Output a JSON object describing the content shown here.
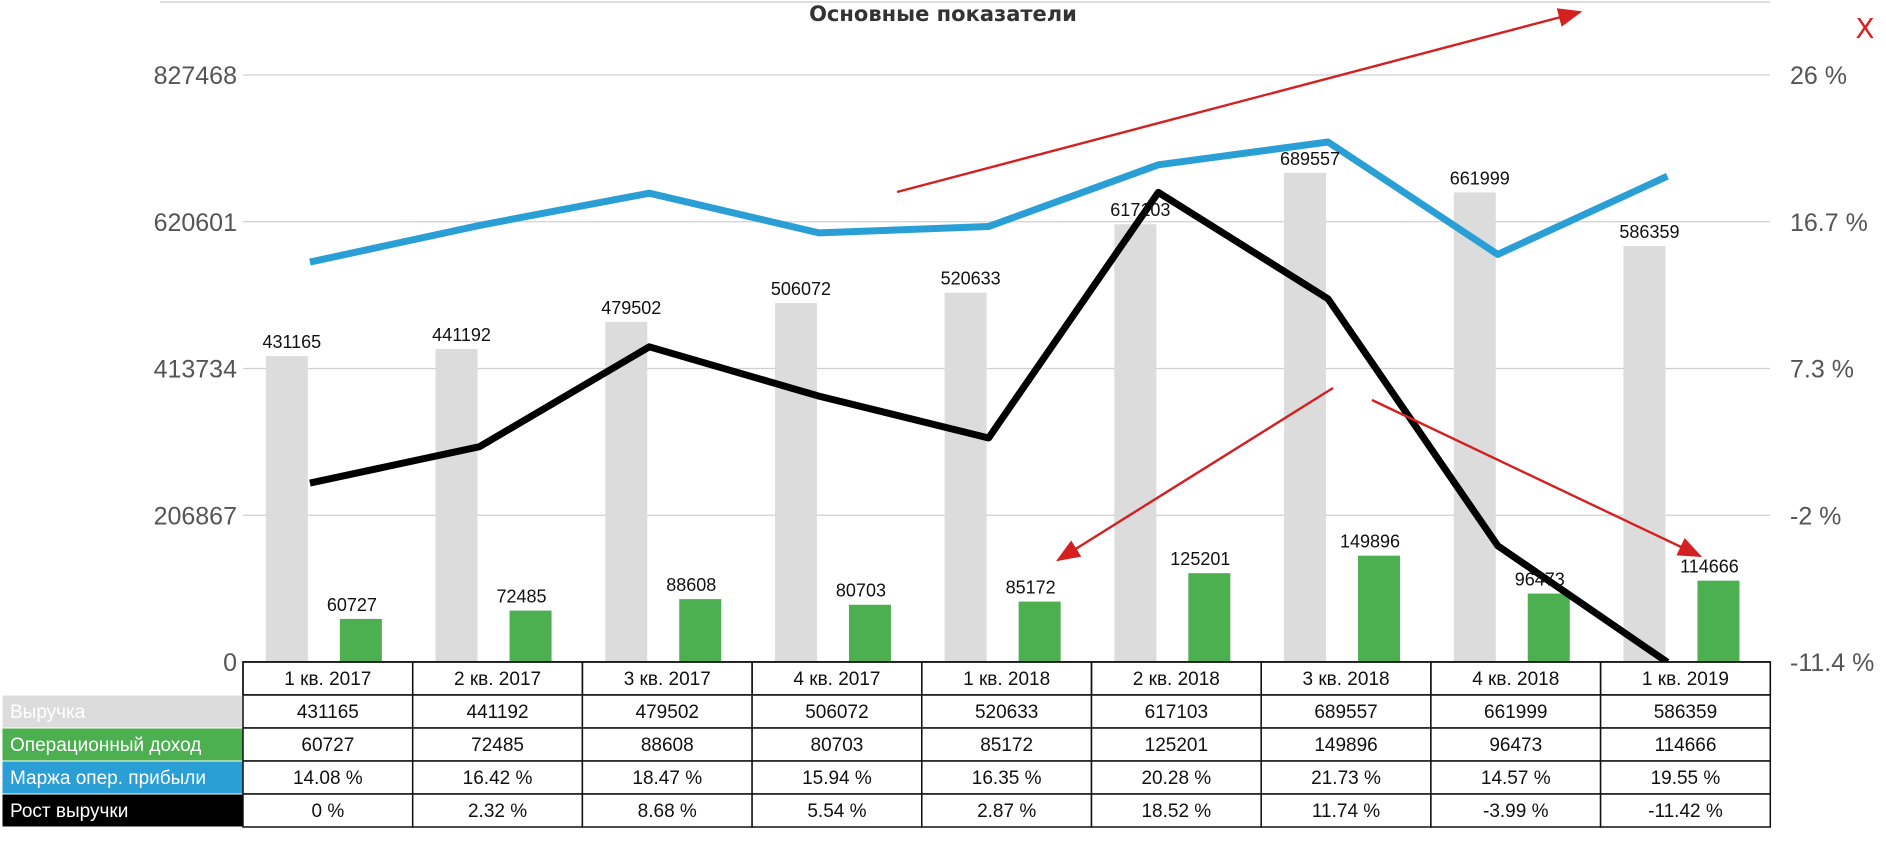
{
  "chart_data": {
    "type": "bar",
    "title": "Основные показатели",
    "categories": [
      "1 кв. 2017",
      "2 кв. 2017",
      "3 кв. 2017",
      "4 кв. 2017",
      "1 кв. 2018",
      "2 кв. 2018",
      "3 кв. 2018",
      "4 кв. 2018",
      "1 кв. 2019"
    ],
    "y_left": {
      "ticks": [
        "0",
        "206867",
        "413734",
        "620601",
        "827468"
      ],
      "range": [
        0,
        827468
      ]
    },
    "y_right": {
      "ticks": [
        "-11.4 %",
        "-2 %",
        "7.3 %",
        "16.7 %",
        "26 %"
      ],
      "range": [
        -11.4,
        26
      ]
    },
    "grid": true,
    "series": [
      {
        "name": "Выручка",
        "type": "bar",
        "axis": "left",
        "color": "#dcdcdc",
        "values": [
          431165,
          441192,
          479502,
          506072,
          520633,
          617103,
          689557,
          661999,
          586359
        ],
        "labels": [
          "431165",
          "441192",
          "479502",
          "506072",
          "520633",
          "617103",
          "689557",
          "661999",
          "586359"
        ],
        "table": [
          "431165",
          "441192",
          "479502",
          "506072",
          "520633",
          "617103",
          "689557",
          "661999",
          "586359"
        ]
      },
      {
        "name": "Операционный доход",
        "type": "bar",
        "axis": "left",
        "color": "#4caf50",
        "values": [
          60727,
          72485,
          88608,
          80703,
          85172,
          125201,
          149896,
          96473,
          114666
        ],
        "labels": [
          "60727",
          "72485",
          "88608",
          "80703",
          "85172",
          "125201",
          "149896",
          "96473",
          "114666"
        ],
        "table": [
          "60727",
          "72485",
          "88608",
          "80703",
          "85172",
          "125201",
          "149896",
          "96473",
          "114666"
        ]
      },
      {
        "name": "Маржа опер. прибыли",
        "type": "line",
        "axis": "right",
        "color": "#2a9fd6",
        "values": [
          14.08,
          16.42,
          18.47,
          15.94,
          16.35,
          20.28,
          21.73,
          14.57,
          19.55
        ],
        "table": [
          "14.08 %",
          "16.42 %",
          "18.47 %",
          "15.94 %",
          "16.35 %",
          "20.28 %",
          "21.73 %",
          "14.57 %",
          "19.55 %"
        ]
      },
      {
        "name": "Рост выручки",
        "type": "line",
        "axis": "right",
        "color": "#000000",
        "values": [
          0,
          2.32,
          8.68,
          5.54,
          2.87,
          18.52,
          11.74,
          -3.99,
          -11.42
        ],
        "table": [
          "0 %",
          "2.32 %",
          "8.68 %",
          "5.54 %",
          "2.87 %",
          "18.52 %",
          "11.74 %",
          "-3.99 %",
          "-11.42 %"
        ]
      }
    ],
    "annotations": [
      {
        "type": "arrow",
        "color": "#d42020",
        "meaning": "upward trend over margin line"
      },
      {
        "type": "arrow",
        "color": "#d42020",
        "meaning": "pointer to 1 кв. 2018 operating income"
      },
      {
        "type": "arrow",
        "color": "#d42020",
        "meaning": "pointer to 1 кв. 2019 operating income"
      }
    ]
  },
  "close_button": {
    "label": "X",
    "icon": "close-icon",
    "color": "#e02020"
  }
}
